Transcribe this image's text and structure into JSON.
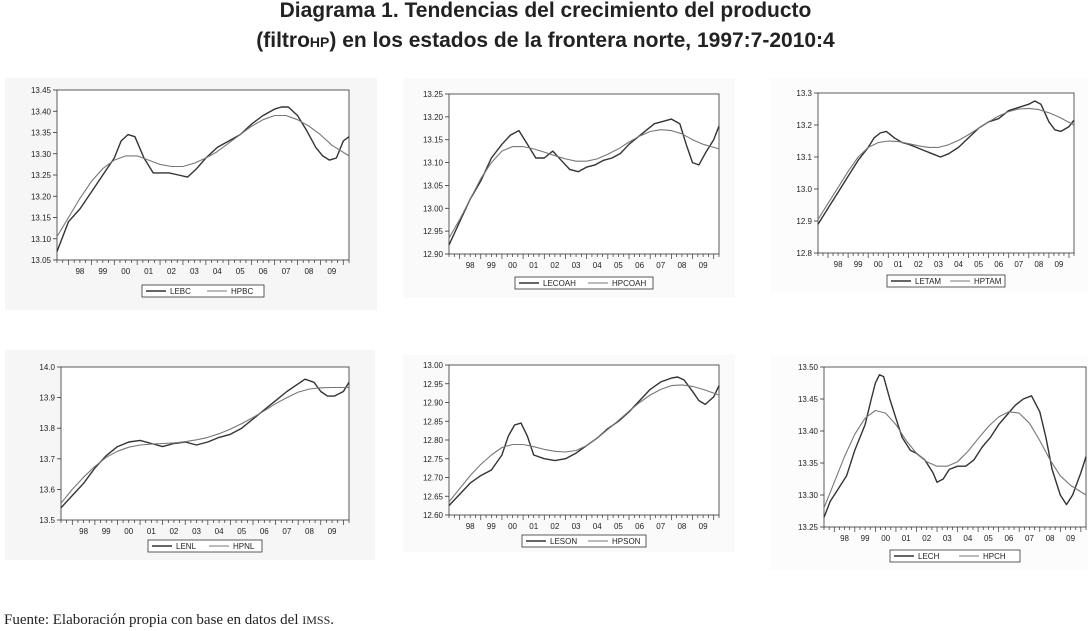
{
  "title_line1": "Diagrama 1. Tendencias del crecimiento del producto",
  "title_line2_prefix": "(filtro",
  "title_line2_small": "HP",
  "title_line2_rest": ") en los estados de la frontera norte, 1997:7-2010:4",
  "source_prefix": "Fuente: Elaboración propia con base en datos del ",
  "source_small": "IMSS",
  "source_suffix": ".",
  "chart_data": [
    {
      "type": "line",
      "x_ticks": [
        "98",
        "99",
        "00",
        "01",
        "02",
        "03",
        "04",
        "05",
        "06",
        "07",
        "08",
        "09"
      ],
      "xlim": [
        1997.5,
        2010.25
      ],
      "yticks": [
        "13.05",
        "13.10",
        "13.15",
        "13.20",
        "13.25",
        "13.30",
        "13.35",
        "13.40",
        "13.45"
      ],
      "ylim": [
        13.05,
        13.45
      ],
      "series": [
        {
          "name": "LEBC",
          "x": [
            1997.5,
            1998.0,
            1998.5,
            1999.0,
            1999.5,
            2000.0,
            2000.3,
            2000.6,
            2000.9,
            2001.3,
            2001.7,
            2002.0,
            2002.4,
            2002.8,
            2003.2,
            2003.6,
            2004.0,
            2004.5,
            2005.0,
            2005.5,
            2006.0,
            2006.5,
            2007.0,
            2007.3,
            2007.6,
            2008.0,
            2008.4,
            2008.8,
            2009.1,
            2009.4,
            2009.7,
            2010.0,
            2010.25
          ],
          "values": [
            13.07,
            13.14,
            13.17,
            13.21,
            13.25,
            13.29,
            13.33,
            13.345,
            13.34,
            13.29,
            13.255,
            13.255,
            13.255,
            13.25,
            13.245,
            13.265,
            13.29,
            13.315,
            13.33,
            13.345,
            13.37,
            13.39,
            13.405,
            13.41,
            13.41,
            13.39,
            13.355,
            13.315,
            13.295,
            13.285,
            13.29,
            13.33,
            13.34
          ]
        },
        {
          "name": "HPBC",
          "x": [
            1997.5,
            1998.0,
            1998.5,
            1999.0,
            1999.5,
            2000.0,
            2000.5,
            2001.0,
            2001.5,
            2002.0,
            2002.5,
            2003.0,
            2003.5,
            2004.0,
            2004.5,
            2005.0,
            2005.5,
            2006.0,
            2006.5,
            2007.0,
            2007.5,
            2008.0,
            2008.5,
            2009.0,
            2009.5,
            2010.25
          ],
          "values": [
            13.105,
            13.15,
            13.195,
            13.235,
            13.265,
            13.285,
            13.295,
            13.295,
            13.285,
            13.275,
            13.27,
            13.27,
            13.278,
            13.29,
            13.305,
            13.325,
            13.345,
            13.365,
            13.38,
            13.39,
            13.39,
            13.38,
            13.365,
            13.345,
            13.32,
            13.295
          ]
        }
      ]
    },
    {
      "type": "line",
      "x_ticks": [
        "98",
        "99",
        "00",
        "01",
        "02",
        "03",
        "04",
        "05",
        "06",
        "07",
        "08",
        "09"
      ],
      "xlim": [
        1997.5,
        2010.25
      ],
      "yticks": [
        "12.90",
        "12.95",
        "13.00",
        "13.05",
        "13.10",
        "13.15",
        "13.20",
        "13.25"
      ],
      "ylim": [
        12.9,
        13.25
      ],
      "series": [
        {
          "name": "LECOAH",
          "x": [
            1997.5,
            1998.0,
            1998.5,
            1999.0,
            1999.5,
            2000.0,
            2000.4,
            2000.8,
            2001.2,
            2001.6,
            2002.0,
            2002.4,
            2002.8,
            2003.2,
            2003.6,
            2004.0,
            2004.4,
            2004.8,
            2005.2,
            2005.6,
            2006.0,
            2006.4,
            2006.8,
            2007.2,
            2007.6,
            2008.0,
            2008.4,
            2008.7,
            2009.0,
            2009.3,
            2009.6,
            2010.0,
            2010.25
          ],
          "values": [
            12.92,
            12.97,
            13.02,
            13.06,
            13.11,
            13.14,
            13.16,
            13.17,
            13.14,
            13.11,
            13.11,
            13.125,
            13.105,
            13.085,
            13.08,
            13.09,
            13.095,
            13.105,
            13.11,
            13.12,
            13.14,
            13.155,
            13.17,
            13.185,
            13.19,
            13.195,
            13.185,
            13.14,
            13.1,
            13.095,
            13.12,
            13.15,
            13.18
          ]
        },
        {
          "name": "HPCOAH",
          "x": [
            1997.5,
            1998.0,
            1998.5,
            1999.0,
            1999.5,
            2000.0,
            2000.5,
            2001.0,
            2001.5,
            2002.0,
            2002.5,
            2003.0,
            2003.5,
            2004.0,
            2004.5,
            2005.0,
            2005.5,
            2006.0,
            2006.5,
            2007.0,
            2007.5,
            2008.0,
            2008.5,
            2009.0,
            2009.5,
            2010.25
          ],
          "values": [
            12.935,
            12.975,
            13.02,
            13.065,
            13.1,
            13.125,
            13.135,
            13.135,
            13.13,
            13.123,
            13.115,
            13.108,
            13.103,
            13.103,
            13.108,
            13.118,
            13.13,
            13.145,
            13.158,
            13.168,
            13.172,
            13.17,
            13.163,
            13.15,
            13.14,
            13.13
          ]
        }
      ]
    },
    {
      "type": "line",
      "x_ticks": [
        "98",
        "99",
        "00",
        "01",
        "02",
        "03",
        "04",
        "05",
        "06",
        "07",
        "08",
        "09"
      ],
      "xlim": [
        1997.5,
        2010.25
      ],
      "yticks": [
        "12.8",
        "12.9",
        "13.0",
        "13.1",
        "13.2",
        "13.3"
      ],
      "ylim": [
        12.8,
        13.3
      ],
      "series": [
        {
          "name": "LETAM",
          "x": [
            1997.5,
            1998.0,
            1998.5,
            1999.0,
            1999.5,
            2000.0,
            2000.3,
            2000.6,
            2000.9,
            2001.3,
            2001.7,
            2002.0,
            2002.4,
            2002.8,
            2003.2,
            2003.6,
            2004.0,
            2004.5,
            2005.0,
            2005.5,
            2006.0,
            2006.5,
            2007.0,
            2007.5,
            2008.0,
            2008.3,
            2008.6,
            2009.0,
            2009.3,
            2009.6,
            2010.0,
            2010.25
          ],
          "values": [
            12.89,
            12.94,
            12.99,
            13.04,
            13.09,
            13.13,
            13.16,
            13.175,
            13.18,
            13.16,
            13.145,
            13.14,
            13.13,
            13.12,
            13.11,
            13.1,
            13.11,
            13.13,
            13.16,
            13.19,
            13.21,
            13.22,
            13.245,
            13.255,
            13.265,
            13.275,
            13.265,
            13.21,
            13.185,
            13.18,
            13.195,
            13.215
          ]
        },
        {
          "name": "HPTAM",
          "x": [
            1997.5,
            1998.0,
            1998.5,
            1999.0,
            1999.5,
            2000.0,
            2000.5,
            2001.0,
            2001.5,
            2002.0,
            2002.5,
            2003.0,
            2003.5,
            2004.0,
            2004.5,
            2005.0,
            2005.5,
            2006.0,
            2006.5,
            2007.0,
            2007.5,
            2008.0,
            2008.5,
            2009.0,
            2009.5,
            2010.25
          ],
          "values": [
            12.905,
            12.955,
            13.005,
            13.055,
            13.1,
            13.13,
            13.145,
            13.15,
            13.148,
            13.142,
            13.135,
            13.13,
            13.13,
            13.138,
            13.152,
            13.17,
            13.19,
            13.21,
            13.228,
            13.242,
            13.25,
            13.252,
            13.248,
            13.238,
            13.225,
            13.2
          ]
        }
      ]
    },
    {
      "type": "line",
      "x_ticks": [
        "98",
        "99",
        "00",
        "01",
        "02",
        "03",
        "04",
        "05",
        "06",
        "07",
        "08",
        "09"
      ],
      "xlim": [
        1997.5,
        2010.25
      ],
      "yticks": [
        "13.5",
        "13.6",
        "13.7",
        "13.8",
        "13.9",
        "14.0"
      ],
      "ylim": [
        13.5,
        14.0
      ],
      "series": [
        {
          "name": "LENL",
          "x": [
            1997.5,
            1998.0,
            1998.5,
            1999.0,
            1999.5,
            2000.0,
            2000.5,
            2001.0,
            2001.5,
            2002.0,
            2002.5,
            2003.0,
            2003.5,
            2004.0,
            2004.5,
            2005.0,
            2005.5,
            2006.0,
            2006.5,
            2007.0,
            2007.5,
            2008.0,
            2008.3,
            2008.7,
            2009.0,
            2009.3,
            2009.6,
            2010.0,
            2010.25
          ],
          "values": [
            13.54,
            13.58,
            13.62,
            13.67,
            13.71,
            13.74,
            13.755,
            13.76,
            13.75,
            13.74,
            13.75,
            13.755,
            13.745,
            13.755,
            13.77,
            13.78,
            13.8,
            13.83,
            13.86,
            13.89,
            13.92,
            13.945,
            13.96,
            13.95,
            13.92,
            13.905,
            13.905,
            13.92,
            13.95
          ]
        },
        {
          "name": "HPNL",
          "x": [
            1997.5,
            1998.0,
            1998.5,
            1999.0,
            1999.5,
            2000.0,
            2000.5,
            2001.0,
            2001.5,
            2002.0,
            2002.5,
            2003.0,
            2003.5,
            2004.0,
            2004.5,
            2005.0,
            2005.5,
            2006.0,
            2006.5,
            2007.0,
            2007.5,
            2008.0,
            2008.5,
            2009.0,
            2009.5,
            2010.25
          ],
          "values": [
            13.555,
            13.6,
            13.64,
            13.675,
            13.705,
            13.725,
            13.738,
            13.745,
            13.748,
            13.75,
            13.752,
            13.756,
            13.762,
            13.77,
            13.782,
            13.797,
            13.815,
            13.835,
            13.857,
            13.88,
            13.9,
            13.918,
            13.928,
            13.932,
            13.933,
            13.933
          ]
        }
      ]
    },
    {
      "type": "line",
      "x_ticks": [
        "98",
        "99",
        "00",
        "01",
        "02",
        "03",
        "04",
        "05",
        "06",
        "07",
        "08",
        "09"
      ],
      "xlim": [
        1997.5,
        2010.25
      ],
      "yticks": [
        "12.60",
        "12.65",
        "12.70",
        "12.75",
        "12.80",
        "12.85",
        "12.90",
        "12.95",
        "13.00"
      ],
      "ylim": [
        12.6,
        13.0
      ],
      "series": [
        {
          "name": "LESON",
          "x": [
            1997.5,
            1998.0,
            1998.5,
            1999.0,
            1999.5,
            2000.0,
            2000.3,
            2000.6,
            2000.9,
            2001.2,
            2001.5,
            2002.0,
            2002.5,
            2003.0,
            2003.5,
            2004.0,
            2004.5,
            2005.0,
            2005.5,
            2006.0,
            2006.5,
            2007.0,
            2007.5,
            2008.0,
            2008.3,
            2008.6,
            2009.0,
            2009.3,
            2009.6,
            2010.0,
            2010.25
          ],
          "values": [
            12.625,
            12.655,
            12.685,
            12.705,
            12.72,
            12.76,
            12.81,
            12.84,
            12.845,
            12.81,
            12.76,
            12.75,
            12.745,
            12.75,
            12.765,
            12.785,
            12.805,
            12.83,
            12.85,
            12.875,
            12.905,
            12.935,
            12.955,
            12.965,
            12.968,
            12.96,
            12.93,
            12.905,
            12.895,
            12.915,
            12.945
          ]
        },
        {
          "name": "HPSON",
          "x": [
            1997.5,
            1998.0,
            1998.5,
            1999.0,
            1999.5,
            2000.0,
            2000.5,
            2001.0,
            2001.5,
            2002.0,
            2002.5,
            2003.0,
            2003.5,
            2004.0,
            2004.5,
            2005.0,
            2005.5,
            2006.0,
            2006.5,
            2007.0,
            2007.5,
            2008.0,
            2008.5,
            2009.0,
            2009.5,
            2010.25
          ],
          "values": [
            12.635,
            12.67,
            12.705,
            12.735,
            12.76,
            12.78,
            12.788,
            12.788,
            12.782,
            12.775,
            12.77,
            12.768,
            12.772,
            12.785,
            12.805,
            12.828,
            12.852,
            12.877,
            12.9,
            12.92,
            12.935,
            12.945,
            12.947,
            12.943,
            12.935,
            12.92
          ]
        }
      ]
    },
    {
      "type": "line",
      "x_ticks": [
        "98",
        "99",
        "00",
        "01",
        "02",
        "03",
        "04",
        "05",
        "06",
        "07",
        "08",
        "09"
      ],
      "xlim": [
        1997.5,
        2010.25
      ],
      "yticks": [
        "13.25",
        "13.30",
        "13.35",
        "13.40",
        "13.45",
        "13.50"
      ],
      "ylim": [
        13.25,
        13.5
      ],
      "series": [
        {
          "name": "LECH",
          "x": [
            1997.5,
            1997.8,
            1998.2,
            1998.6,
            1999.0,
            1999.5,
            1999.8,
            2000.0,
            2000.2,
            2000.4,
            2000.7,
            2001.0,
            2001.3,
            2001.7,
            2002.0,
            2002.4,
            2002.8,
            2003.0,
            2003.3,
            2003.6,
            2004.0,
            2004.4,
            2004.8,
            2005.2,
            2005.6,
            2006.0,
            2006.4,
            2006.8,
            2007.2,
            2007.6,
            2008.0,
            2008.3,
            2008.6,
            2009.0,
            2009.3,
            2009.6,
            2010.0,
            2010.25
          ],
          "values": [
            13.265,
            13.29,
            13.31,
            13.33,
            13.37,
            13.41,
            13.45,
            13.475,
            13.488,
            13.485,
            13.45,
            13.42,
            13.39,
            13.37,
            13.365,
            13.355,
            13.335,
            13.32,
            13.325,
            13.34,
            13.345,
            13.345,
            13.355,
            13.375,
            13.39,
            13.41,
            13.425,
            13.44,
            13.45,
            13.455,
            13.43,
            13.39,
            13.34,
            13.3,
            13.285,
            13.3,
            13.335,
            13.36
          ]
        },
        {
          "name": "HPCH",
          "x": [
            1997.5,
            1998.0,
            1998.5,
            1999.0,
            1999.5,
            2000.0,
            2000.5,
            2001.0,
            2001.5,
            2002.0,
            2002.5,
            2003.0,
            2003.5,
            2004.0,
            2004.5,
            2005.0,
            2005.5,
            2006.0,
            2006.5,
            2007.0,
            2007.5,
            2008.0,
            2008.5,
            2009.0,
            2009.5,
            2010.25
          ],
          "values": [
            13.28,
            13.32,
            13.36,
            13.395,
            13.42,
            13.432,
            13.428,
            13.41,
            13.385,
            13.365,
            13.352,
            13.345,
            13.345,
            13.352,
            13.368,
            13.388,
            13.407,
            13.422,
            13.43,
            13.428,
            13.412,
            13.385,
            13.355,
            13.33,
            13.315,
            13.3
          ]
        }
      ]
    }
  ]
}
